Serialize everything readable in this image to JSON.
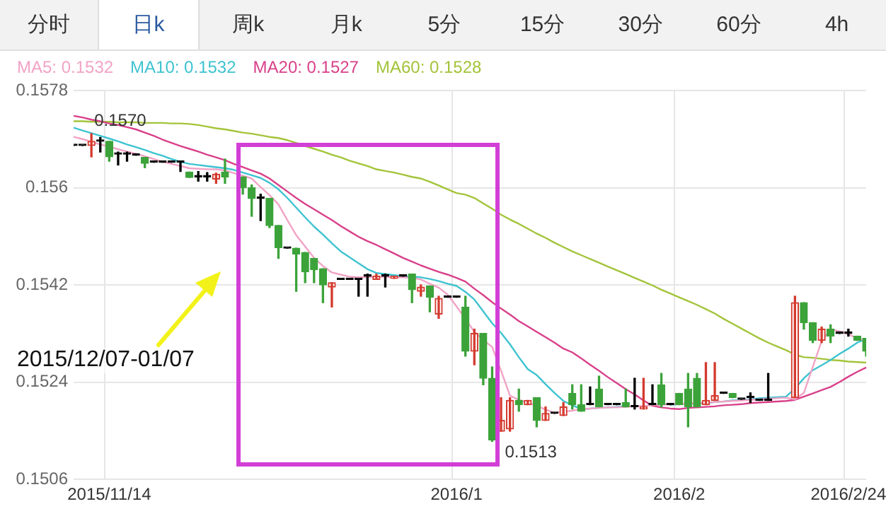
{
  "chart_data": {
    "type": "candlestick",
    "categories": [
      null,
      null,
      null,
      null,
      "2015/11/14",
      null,
      null,
      null,
      null,
      null,
      null,
      null,
      null,
      null,
      null,
      null,
      null,
      null,
      null,
      null,
      null,
      null,
      null,
      null,
      null,
      null,
      null,
      null,
      null,
      null,
      null,
      null,
      null,
      null,
      null,
      null,
      null,
      null,
      null,
      null,
      null,
      null,
      null,
      "2016/1",
      null,
      null,
      null,
      null,
      null,
      null,
      null,
      null,
      null,
      null,
      null,
      null,
      null,
      null,
      null,
      null,
      null,
      null,
      null,
      null,
      null,
      null,
      null,
      null,
      "2016/2",
      null,
      null,
      null,
      null,
      null,
      null,
      null,
      null,
      null,
      null,
      null,
      null,
      null,
      null,
      null,
      null,
      null,
      null,
      "2016/2/24",
      null,
      null
    ],
    "ohlc": [
      [
        0.15678,
        0.15678,
        0.15678,
        0.15678
      ],
      [
        0.15678,
        0.15678,
        0.15678,
        0.15678
      ],
      [
        0.15678,
        0.157,
        0.15657,
        0.15686
      ],
      [
        0.15686,
        0.15693,
        0.15666,
        0.15686
      ],
      [
        0.15686,
        0.15686,
        0.15649,
        0.15657
      ],
      [
        0.15662,
        0.15666,
        0.15642,
        0.15662
      ],
      [
        0.15662,
        0.15666,
        0.15649,
        0.15662
      ],
      [
        0.1566,
        0.1566,
        0.1566,
        0.1566
      ],
      [
        0.15656,
        0.15656,
        0.15637,
        0.15645
      ],
      [
        0.15647,
        0.15647,
        0.15647,
        0.15647
      ],
      [
        0.15647,
        0.15647,
        0.15647,
        0.15647
      ],
      [
        0.15647,
        0.15647,
        0.15647,
        0.15647
      ],
      [
        0.15647,
        0.15647,
        0.1563,
        0.15647
      ],
      [
        0.15629,
        0.15629,
        0.15619,
        0.15619
      ],
      [
        0.1562,
        0.1563,
        0.15612,
        0.1562
      ],
      [
        0.1562,
        0.15628,
        0.15612,
        0.1562
      ],
      [
        0.15616,
        0.15627,
        0.15608,
        0.15625
      ],
      [
        0.15629,
        0.15653,
        0.15608,
        0.1562
      ],
      null,
      [
        0.1562,
        0.1562,
        0.15588,
        0.156
      ],
      [
        0.156,
        0.15605,
        0.15547,
        0.1558
      ],
      [
        0.1558,
        0.15588,
        0.15539,
        0.1558
      ],
      [
        0.1558,
        0.1558,
        0.15526,
        0.1553
      ],
      [
        0.1553,
        0.1553,
        0.15469,
        0.15489
      ],
      [
        0.15488,
        0.15488,
        0.15488,
        0.15488
      ],
      [
        0.15488,
        0.15488,
        0.15408,
        0.15477
      ],
      [
        0.1548,
        0.1548,
        0.15424,
        0.15444
      ],
      [
        0.15469,
        0.15469,
        0.15424,
        0.15448
      ],
      [
        0.1545,
        0.1545,
        0.15387,
        0.1542
      ],
      [
        0.15416,
        0.15424,
        0.15379,
        0.15424
      ],
      [
        0.1543,
        0.1543,
        0.1543,
        0.1543
      ],
      [
        0.1543,
        0.1543,
        0.1543,
        0.1543
      ],
      [
        0.1543,
        0.1543,
        0.15399,
        0.1543
      ],
      [
        0.15436,
        0.1544,
        0.15399,
        0.15436
      ],
      [
        0.1543,
        0.1544,
        0.1543,
        0.15436
      ],
      [
        0.15436,
        0.1544,
        0.15416,
        0.15436
      ],
      [
        0.15432,
        0.15436,
        0.15432,
        0.15436
      ],
      [
        0.15436,
        0.15436,
        0.15436,
        0.15436
      ],
      [
        0.1544,
        0.1544,
        0.15387,
        0.15411
      ],
      [
        0.15408,
        0.1542,
        0.15399,
        0.15416
      ],
      [
        0.15418,
        0.15418,
        0.1537,
        0.15397
      ],
      [
        0.15366,
        0.15399,
        0.15358,
        0.15395
      ],
      [
        0.15397,
        0.15397,
        0.15397,
        0.15397
      ],
      [
        0.15397,
        0.15397,
        0.15397,
        0.15397
      ],
      [
        0.15379,
        0.15399,
        0.15288,
        0.15297
      ],
      [
        0.15297,
        0.15338,
        0.15272,
        0.1533
      ],
      [
        0.1533,
        0.1533,
        0.15235,
        0.15247
      ],
      [
        0.15247,
        0.15268,
        0.1513,
        0.15133
      ],
      [
        0.15149,
        0.15211,
        0.15149,
        0.15169
      ],
      [
        0.15153,
        0.15211,
        0.15149,
        0.15206
      ],
      [
        0.15206,
        0.15227,
        0.15186,
        0.15198
      ],
      [
        0.15198,
        0.15206,
        0.15198,
        0.15206
      ],
      [
        0.15211,
        0.15211,
        0.15157,
        0.15169
      ],
      [
        0.15169,
        0.15194,
        0.15169,
        0.15182
      ],
      [
        0.15182,
        0.15182,
        0.15182,
        0.15182
      ],
      [
        0.15178,
        0.15202,
        0.15178,
        0.15194
      ],
      [
        0.15219,
        0.15235,
        0.1519,
        0.15198
      ],
      [
        0.15198,
        0.15235,
        0.15186,
        0.15186
      ],
      [
        0.15198,
        0.15231,
        0.15198,
        0.15198
      ],
      [
        0.15227,
        0.15251,
        0.15194,
        0.15194
      ],
      [
        0.15198,
        0.15198,
        0.15198,
        0.15198
      ],
      [
        0.15198,
        0.15198,
        0.15198,
        0.15198
      ],
      [
        0.15202,
        0.15227,
        0.15194,
        0.15194
      ],
      [
        0.15194,
        0.15247,
        0.1519,
        0.15194
      ],
      [
        0.1519,
        0.15247,
        0.1519,
        0.15194
      ],
      [
        0.15198,
        0.15235,
        0.15198,
        0.15198
      ],
      [
        0.15235,
        0.15256,
        0.15194,
        0.15198
      ],
      [
        0.15198,
        0.15198,
        0.15198,
        0.15198
      ],
      [
        0.15219,
        0.15219,
        0.15198,
        0.15198
      ],
      [
        0.15227,
        0.15256,
        0.15157,
        0.15194
      ],
      [
        0.15247,
        0.15256,
        0.15194,
        0.15194
      ],
      [
        0.15198,
        0.15276,
        0.15198,
        0.15206
      ],
      [
        0.15206,
        0.15276,
        0.15206,
        0.15215
      ],
      [
        0.15219,
        0.15219,
        0.15219,
        0.15219
      ],
      [
        0.15219,
        0.15219,
        0.15211,
        0.15211
      ],
      [
        0.15208,
        0.15208,
        0.15208,
        0.15208
      ],
      [
        0.15211,
        0.1522,
        0.15202,
        0.15211
      ],
      [
        0.15206,
        0.15206,
        0.15206,
        0.15206
      ],
      [
        0.15206,
        0.15256,
        0.15206,
        0.15206
      ],
      null,
      null,
      [
        0.15211,
        0.15399,
        0.15211,
        0.15387
      ],
      [
        0.15387,
        0.15387,
        0.15338,
        0.1535
      ],
      [
        0.1535,
        0.1535,
        0.15313,
        0.15317
      ],
      [
        0.15317,
        0.15342,
        0.15313,
        0.15338
      ],
      [
        0.15338,
        0.15346,
        0.15313,
        0.15325
      ],
      [
        0.1533,
        0.1533,
        0.1533,
        0.1533
      ],
      [
        0.1533,
        0.15338,
        0.15325,
        0.1533
      ],
      [
        0.15325,
        0.15325,
        0.15317,
        0.15317
      ],
      [
        0.15321,
        0.15321,
        0.15288,
        0.15297
      ]
    ],
    "colors": [
      "#000000",
      "#000000",
      "#d43a2f",
      "#000000",
      "#3ca33a",
      "#000000",
      "#000000",
      "#000000",
      "#3ca33a",
      "#000000",
      "#000000",
      "#000000",
      "#000000",
      "#3ca33a",
      "#000000",
      "#000000",
      "#d43a2f",
      "#3ca33a",
      null,
      "#3ca33a",
      "#3ca33a",
      "#000000",
      "#3ca33a",
      "#3ca33a",
      "#000000",
      "#3ca33a",
      "#3ca33a",
      "#3ca33a",
      "#3ca33a",
      "#d43a2f",
      "#000000",
      "#000000",
      "#000000",
      "#000000",
      "#d43a2f",
      "#000000",
      "#d43a2f",
      "#000000",
      "#3ca33a",
      "#d43a2f",
      "#3ca33a",
      "#d43a2f",
      "#000000",
      "#000000",
      "#3ca33a",
      "#d43a2f",
      "#3ca33a",
      "#3ca33a",
      "#d43a2f",
      "#d43a2f",
      "#3ca33a",
      "#d43a2f",
      "#3ca33a",
      "#d43a2f",
      "#000000",
      "#d43a2f",
      "#3ca33a",
      "#3ca33a",
      "#000000",
      "#3ca33a",
      "#000000",
      "#000000",
      "#3ca33a",
      "#000000",
      "#d43a2f",
      "#000000",
      "#3ca33a",
      "#000000",
      "#3ca33a",
      "#3ca33a",
      "#3ca33a",
      "#d43a2f",
      "#d43a2f",
      "#000000",
      "#3ca33a",
      "#000000",
      "#000000",
      "#000000",
      "#000000",
      null,
      null,
      "#d43a2f",
      "#3ca33a",
      "#3ca33a",
      "#d43a2f",
      "#3ca33a",
      "#000000",
      "#000000",
      "#3ca33a",
      "#3ca33a"
    ],
    "series": [
      {
        "type": "line",
        "name": "MA5: 0.1532",
        "color": "#f2a3c6",
        "values": [
          0.15694,
          0.1569,
          0.15685,
          0.1568,
          0.15676,
          0.15671,
          0.15667,
          0.15663,
          0.15658,
          0.15653,
          0.15648,
          0.15644,
          0.1564,
          0.15636,
          0.15635,
          0.15634,
          0.15634,
          0.15632,
          0.15627,
          0.15622,
          0.15617,
          0.15601,
          0.15586,
          0.15569,
          0.1554,
          0.15512,
          0.15491,
          0.1547,
          0.15455,
          0.15443,
          0.15439,
          0.15435,
          0.15434,
          0.15434,
          0.15435,
          0.15435,
          0.15434,
          0.15434,
          0.15433,
          0.1543,
          0.15422,
          0.15415,
          0.15402,
          0.1538,
          0.15357,
          0.15333,
          0.15318,
          0.15305,
          0.15261,
          0.15215,
          0.15207,
          0.15202,
          0.15196,
          0.15189,
          0.15183,
          0.15185,
          0.15187,
          0.1519,
          0.15191,
          0.15192,
          0.15193,
          0.15193,
          0.15194,
          0.15195,
          0.15196,
          0.15197,
          0.15198,
          0.15199,
          0.152,
          0.152,
          0.15201,
          0.15202,
          0.15203,
          0.15204,
          0.15205,
          0.15206,
          0.15207,
          0.15208,
          0.15209,
          0.1521,
          0.15211,
          0.15208,
          0.1522,
          0.15268,
          0.15316,
          0.15338,
          0.15334,
          0.15329,
          0.1532,
          0.15317
        ]
      },
      {
        "type": "line",
        "name": "MA10: 0.1532",
        "color": "#3ec3d0",
        "values": [
          0.15711,
          0.15706,
          0.15701,
          0.15696,
          0.15691,
          0.15686,
          0.1568,
          0.15675,
          0.1567,
          0.15664,
          0.15659,
          0.15653,
          0.15648,
          0.15644,
          0.15642,
          0.1564,
          0.15638,
          0.15636,
          0.15633,
          0.15628,
          0.15623,
          0.15618,
          0.15609,
          0.15597,
          0.15581,
          0.15563,
          0.15545,
          0.15528,
          0.15513,
          0.15497,
          0.15482,
          0.15471,
          0.1546,
          0.15449,
          0.15442,
          0.1544,
          0.15438,
          0.15436,
          0.15435,
          0.15434,
          0.15431,
          0.15427,
          0.15422,
          0.15418,
          0.15407,
          0.15393,
          0.15371,
          0.15349,
          0.15331,
          0.1531,
          0.15286,
          0.15264,
          0.15253,
          0.15236,
          0.1522,
          0.15205,
          0.15197,
          0.1519,
          0.15191,
          0.15192,
          0.15193,
          0.15194,
          0.15195,
          null,
          null,
          null,
          null,
          0.15198,
          0.15199,
          0.152,
          0.152,
          0.15201,
          0.15203,
          0.15204,
          0.15206,
          0.15207,
          0.15208,
          0.1521,
          0.15211,
          0.15212,
          0.15213,
          0.15228,
          0.15247,
          0.15262,
          0.15271,
          0.15281,
          0.15292,
          0.15302,
          0.15313,
          0.1532
        ]
      },
      {
        "type": "line",
        "name": "MA20: 0.1527",
        "color": "#d9408a",
        "values": [
          0.15733,
          0.1573,
          0.15726,
          0.15723,
          0.15719,
          0.15716,
          0.15712,
          0.15708,
          0.15702,
          0.15696,
          0.15689,
          0.15683,
          0.15677,
          0.15672,
          0.15667,
          0.15661,
          0.15656,
          0.15651,
          0.15644,
          0.15638,
          0.15632,
          0.15626,
          0.15617,
          0.15605,
          0.15593,
          0.15581,
          0.1557,
          0.1556,
          0.1555,
          0.1554,
          0.15529,
          0.15519,
          0.15509,
          0.15501,
          0.15494,
          0.15486,
          0.15478,
          0.1547,
          0.15463,
          0.15456,
          0.1545,
          0.15444,
          0.15439,
          0.15433,
          0.15426,
          0.15413,
          0.15401,
          0.15388,
          0.15376,
          0.15365,
          0.15353,
          0.15343,
          0.15333,
          0.15323,
          0.15313,
          0.15302,
          0.15295,
          0.15284,
          0.15272,
          0.15261,
          0.15249,
          0.15238,
          0.15227,
          0.15217,
          0.15206,
          0.15196,
          0.15193,
          0.15191,
          0.1519,
          0.15192,
          0.15193,
          0.15194,
          0.15195,
          0.15197,
          0.15198,
          0.15199,
          0.15201,
          0.15202,
          0.15203,
          0.15204,
          0.15205,
          0.15207,
          0.15213,
          0.15219,
          0.15225,
          0.15231,
          0.1524,
          0.1525,
          0.15259,
          0.15267
        ]
      },
      {
        "type": "line",
        "name": "MA60: 0.1528",
        "color": "#a3c43a",
        "values": [
          0.15723,
          0.15723,
          0.15722,
          0.15722,
          0.15722,
          0.15721,
          0.15721,
          0.15721,
          0.1572,
          0.1572,
          0.1572,
          0.15719,
          0.15719,
          0.15718,
          0.15716,
          0.15713,
          0.1571,
          0.15708,
          0.15705,
          0.15702,
          0.157,
          0.15697,
          0.15694,
          0.15692,
          0.15688,
          0.15683,
          0.15677,
          0.15672,
          0.15667,
          0.15661,
          0.15656,
          0.1565,
          0.15645,
          0.1564,
          0.15634,
          0.15631,
          0.15628,
          0.15624,
          0.1562,
          0.15617,
          0.15611,
          0.15604,
          0.15597,
          0.1559,
          0.15587,
          0.15581,
          0.15571,
          0.15561,
          0.1555,
          0.15541,
          0.15533,
          0.15524,
          0.15515,
          0.15507,
          0.15498,
          0.1549,
          0.15482,
          0.15475,
          0.15468,
          0.15461,
          0.15454,
          0.15447,
          0.1544,
          0.15433,
          0.15426,
          0.15419,
          0.15411,
          0.15404,
          0.15397,
          0.1539,
          0.15383,
          0.15375,
          0.15367,
          0.15357,
          0.15348,
          0.15339,
          0.1533,
          0.15321,
          0.15313,
          0.15306,
          0.15299,
          0.15291,
          0.15286,
          0.15285,
          0.15283,
          0.15281,
          0.1528,
          0.15278,
          0.15277,
          0.15276
        ]
      }
    ],
    "ylim": [
      0.1506,
      0.1578
    ],
    "yticks": [
      0.1506,
      0.1524,
      0.1542,
      0.156,
      0.1578
    ],
    "grid": true,
    "legend": "top left",
    "marker": "none",
    "annotations": [
      "2015/12/07-01/07",
      "分时",
      "日k",
      "周k",
      "月k",
      "5分",
      "15分",
      "30分",
      "60分",
      "4h",
      "0.1570",
      "0.1513"
    ]
  }
}
